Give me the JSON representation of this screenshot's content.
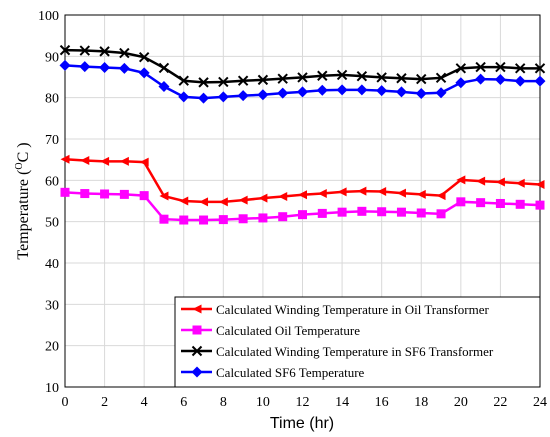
{
  "chart_data": {
    "type": "line",
    "xlabel": "Time (hr)",
    "ylabel_main": "Temperature (",
    "ylabel_unit_sup": "O",
    "ylabel_unit": "C )",
    "xlim": [
      0,
      24
    ],
    "ylim": [
      10,
      100
    ],
    "x_ticks": [
      0,
      2,
      4,
      6,
      8,
      10,
      12,
      14,
      16,
      18,
      20,
      22,
      24
    ],
    "y_ticks": [
      10,
      20,
      30,
      40,
      50,
      60,
      70,
      80,
      90,
      100
    ],
    "grid": true,
    "legend_position": "bottom-right",
    "x": [
      0,
      1,
      2,
      3,
      4,
      5,
      6,
      7,
      8,
      9,
      10,
      11,
      12,
      13,
      14,
      15,
      16,
      17,
      18,
      19,
      20,
      21,
      22,
      23,
      24
    ],
    "series": [
      {
        "name": "Calculated Winding Temperature in Oil Transformer",
        "color": "#ff0000",
        "marker": "triangle-left",
        "values": [
          65.1,
          64.8,
          64.6,
          64.6,
          64.4,
          56.2,
          55.0,
          54.8,
          54.8,
          55.2,
          55.7,
          56.1,
          56.5,
          56.8,
          57.2,
          57.4,
          57.3,
          56.9,
          56.6,
          56.3,
          60.1,
          59.8,
          59.6,
          59.3,
          59.0
        ]
      },
      {
        "name": "Calculated Oil Temperature",
        "color": "#ff00ff",
        "marker": "square",
        "values": [
          57.1,
          56.8,
          56.7,
          56.6,
          56.3,
          50.6,
          50.4,
          50.4,
          50.5,
          50.7,
          50.9,
          51.2,
          51.7,
          52.0,
          52.3,
          52.5,
          52.4,
          52.3,
          52.1,
          51.9,
          54.8,
          54.6,
          54.4,
          54.2,
          54.0
        ]
      },
      {
        "name": "Calculated Winding Temperature in SF6 Transformer",
        "color": "#000000",
        "marker": "x",
        "values": [
          91.5,
          91.4,
          91.2,
          90.8,
          89.8,
          87.2,
          84.1,
          83.7,
          83.8,
          84.1,
          84.3,
          84.6,
          84.9,
          85.3,
          85.5,
          85.2,
          84.9,
          84.7,
          84.5,
          84.8,
          87.1,
          87.4,
          87.4,
          87.1,
          87.1
        ]
      },
      {
        "name": "Calculated SF6 Temperature",
        "color": "#0000ff",
        "marker": "diamond",
        "values": [
          87.8,
          87.5,
          87.3,
          87.1,
          86.0,
          82.7,
          80.2,
          79.9,
          80.2,
          80.5,
          80.7,
          81.1,
          81.4,
          81.8,
          81.9,
          81.9,
          81.7,
          81.4,
          81.0,
          81.2,
          83.6,
          84.5,
          84.4,
          84.0,
          84.0
        ]
      }
    ]
  }
}
